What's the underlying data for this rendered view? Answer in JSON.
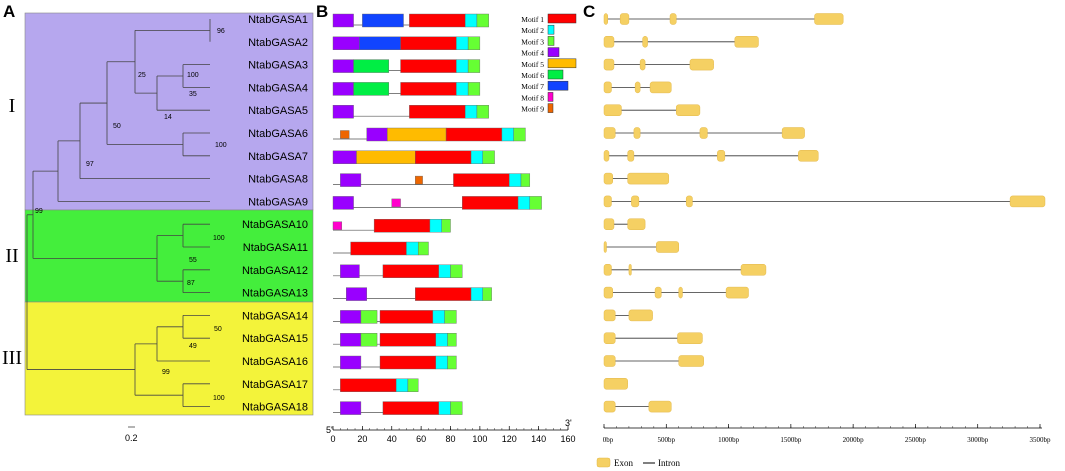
{
  "panels": {
    "a": "A",
    "b": "B",
    "c": "C"
  },
  "clades": [
    {
      "label": "I",
      "color": "#b6a7ee",
      "genes": [
        "NtabGASA1",
        "NtabGASA2",
        "NtabGASA3",
        "NtabGASA4",
        "NtabGASA5",
        "NtabGASA6",
        "NtabGASA7",
        "NtabGASA8",
        "NtabGASA9"
      ]
    },
    {
      "label": "II",
      "color": "#44ee3c",
      "genes": [
        "NtabGASA10",
        "NtabGASA11",
        "NtabGASA12",
        "NtabGASA13"
      ]
    },
    {
      "label": "III",
      "color": "#f3f33a",
      "genes": [
        "NtabGASA14",
        "NtabGASA15",
        "NtabGASA16",
        "NtabGASA17",
        "NtabGASA18"
      ]
    }
  ],
  "genes": [
    "NtabGASA1",
    "NtabGASA2",
    "NtabGASA3",
    "NtabGASA4",
    "NtabGASA5",
    "NtabGASA6",
    "NtabGASA7",
    "NtabGASA8",
    "NtabGASA9",
    "NtabGASA10",
    "NtabGASA11",
    "NtabGASA12",
    "NtabGASA13",
    "NtabGASA14",
    "NtabGASA15",
    "NtabGASA16",
    "NtabGASA17",
    "NtabGASA18"
  ],
  "tree": {
    "bootstrap": [
      "96",
      "25",
      "100",
      "35",
      "14",
      "50",
      "100",
      "97",
      "99",
      "100",
      "55",
      "87",
      "50",
      "49",
      "99",
      "100"
    ],
    "scale_label": "0.2"
  },
  "motifs": {
    "legend": [
      {
        "name": "Motif 1",
        "color": "#ff0000"
      },
      {
        "name": "Motif 2",
        "color": "#00ffff"
      },
      {
        "name": "Motif 3",
        "color": "#66ff33"
      },
      {
        "name": "Motif 4",
        "color": "#9900ff"
      },
      {
        "name": "Motif 5",
        "color": "#ffbb00"
      },
      {
        "name": "Motif 6",
        "color": "#00ee44"
      },
      {
        "name": "Motif 7",
        "color": "#1144ff"
      },
      {
        "name": "Motif 8",
        "color": "#ff00cc"
      },
      {
        "name": "Motif 9",
        "color": "#ee6600"
      }
    ],
    "axis_ticks": [
      "0",
      "20",
      "40",
      "60",
      "80",
      "100",
      "120",
      "140",
      "160"
    ],
    "axis_start": "5'",
    "axis_end": "3'",
    "proteins": [
      {
        "length": 106,
        "motifs": [
          [
            4,
            0,
            14
          ],
          [
            7,
            20,
            48
          ],
          [
            1,
            52,
            90
          ],
          [
            2,
            90,
            98
          ],
          [
            3,
            98,
            106
          ]
        ]
      },
      {
        "length": 100,
        "motifs": [
          [
            4,
            0,
            18
          ],
          [
            7,
            18,
            46
          ],
          [
            1,
            46,
            84
          ],
          [
            2,
            84,
            92
          ],
          [
            3,
            92,
            100
          ]
        ]
      },
      {
        "length": 100,
        "motifs": [
          [
            4,
            0,
            14
          ],
          [
            6,
            14,
            38
          ],
          [
            1,
            46,
            84
          ],
          [
            2,
            84,
            92
          ],
          [
            3,
            92,
            100
          ]
        ]
      },
      {
        "length": 100,
        "motifs": [
          [
            4,
            0,
            14
          ],
          [
            6,
            14,
            38
          ],
          [
            1,
            46,
            84
          ],
          [
            2,
            84,
            92
          ],
          [
            3,
            92,
            100
          ]
        ]
      },
      {
        "length": 106,
        "motifs": [
          [
            4,
            0,
            14
          ],
          [
            1,
            52,
            90
          ],
          [
            2,
            90,
            98
          ],
          [
            3,
            98,
            106
          ]
        ]
      },
      {
        "length": 131,
        "motifs": [
          [
            9,
            5,
            11
          ],
          [
            4,
            23,
            37
          ],
          [
            5,
            37,
            77
          ],
          [
            1,
            77,
            115
          ],
          [
            2,
            115,
            123
          ],
          [
            3,
            123,
            131
          ]
        ]
      },
      {
        "length": 110,
        "motifs": [
          [
            4,
            0,
            16
          ],
          [
            5,
            16,
            56
          ],
          [
            1,
            56,
            94
          ],
          [
            2,
            94,
            102
          ],
          [
            3,
            102,
            110
          ]
        ]
      },
      {
        "length": 134,
        "motifs": [
          [
            4,
            5,
            19
          ],
          [
            9,
            56,
            61
          ],
          [
            1,
            82,
            120
          ],
          [
            2,
            120,
            128
          ],
          [
            3,
            128,
            134
          ]
        ]
      },
      {
        "length": 142,
        "motifs": [
          [
            4,
            0,
            14
          ],
          [
            8,
            40,
            46
          ],
          [
            1,
            88,
            126
          ],
          [
            2,
            126,
            134
          ],
          [
            3,
            134,
            142
          ]
        ]
      },
      {
        "length": 80,
        "motifs": [
          [
            8,
            0,
            6
          ],
          [
            1,
            28,
            66
          ],
          [
            2,
            66,
            74
          ],
          [
            3,
            74,
            80
          ]
        ]
      },
      {
        "length": 65,
        "motifs": [
          [
            1,
            12,
            50
          ],
          [
            2,
            50,
            58
          ],
          [
            3,
            58,
            65
          ]
        ]
      },
      {
        "length": 88,
        "motifs": [
          [
            4,
            5,
            18
          ],
          [
            1,
            34,
            72
          ],
          [
            2,
            72,
            80
          ],
          [
            3,
            80,
            88
          ]
        ]
      },
      {
        "length": 108,
        "motifs": [
          [
            4,
            9,
            23
          ],
          [
            1,
            56,
            94
          ],
          [
            2,
            94,
            102
          ],
          [
            3,
            102,
            108
          ]
        ]
      },
      {
        "length": 84,
        "motifs": [
          [
            4,
            5,
            19
          ],
          [
            3,
            19,
            30
          ],
          [
            1,
            32,
            68
          ],
          [
            2,
            68,
            76
          ],
          [
            3,
            76,
            84
          ]
        ]
      },
      {
        "length": 84,
        "motifs": [
          [
            4,
            5,
            19
          ],
          [
            3,
            19,
            30
          ],
          [
            1,
            32,
            70
          ],
          [
            2,
            70,
            78
          ],
          [
            3,
            78,
            84
          ]
        ]
      },
      {
        "length": 84,
        "motifs": [
          [
            4,
            5,
            19
          ],
          [
            1,
            32,
            70
          ],
          [
            2,
            70,
            78
          ],
          [
            3,
            78,
            84
          ]
        ]
      },
      {
        "length": 58,
        "motifs": [
          [
            1,
            5,
            43
          ],
          [
            2,
            43,
            51
          ],
          [
            3,
            51,
            58
          ]
        ]
      },
      {
        "length": 88,
        "motifs": [
          [
            4,
            5,
            19
          ],
          [
            1,
            34,
            72
          ],
          [
            2,
            72,
            80
          ],
          [
            3,
            80,
            88
          ]
        ]
      }
    ]
  },
  "gene_structure": {
    "axis_ticks": [
      "0bp",
      "500bp",
      "1000bp",
      "1500bp",
      "2000bp",
      "2500bp",
      "3000bp",
      "3500bp"
    ],
    "legend": {
      "exon": "Exon",
      "intron": "Intron"
    },
    "exon_color": "#f5d063",
    "genes": [
      {
        "length": 1920,
        "exons": [
          [
            0,
            30
          ],
          [
            130,
            200
          ],
          [
            530,
            580
          ],
          [
            1690,
            1920
          ]
        ]
      },
      {
        "length": 1240,
        "exons": [
          [
            0,
            80
          ],
          [
            310,
            350
          ],
          [
            1050,
            1240
          ]
        ]
      },
      {
        "length": 880,
        "exons": [
          [
            0,
            80
          ],
          [
            290,
            330
          ],
          [
            690,
            880
          ]
        ]
      },
      {
        "length": 540,
        "exons": [
          [
            0,
            60
          ],
          [
            250,
            290
          ],
          [
            370,
            540
          ]
        ]
      },
      {
        "length": 770,
        "exons": [
          [
            0,
            140
          ],
          [
            580,
            770
          ]
        ]
      },
      {
        "length": 1610,
        "exons": [
          [
            0,
            90
          ],
          [
            240,
            290
          ],
          [
            770,
            830
          ],
          [
            1430,
            1610
          ]
        ]
      },
      {
        "length": 1720,
        "exons": [
          [
            0,
            40
          ],
          [
            190,
            240
          ],
          [
            910,
            970
          ],
          [
            1560,
            1720
          ]
        ]
      },
      {
        "length": 520,
        "exons": [
          [
            0,
            70
          ],
          [
            190,
            520
          ]
        ]
      },
      {
        "length": 3540,
        "exons": [
          [
            0,
            60
          ],
          [
            220,
            280
          ],
          [
            660,
            710
          ],
          [
            3260,
            3540
          ]
        ]
      },
      {
        "length": 330,
        "exons": [
          [
            0,
            80
          ],
          [
            190,
            330
          ]
        ]
      },
      {
        "length": 600,
        "exons": [
          [
            0,
            15
          ],
          [
            420,
            600
          ]
        ]
      },
      {
        "length": 1300,
        "exons": [
          [
            0,
            60
          ],
          [
            200,
            220
          ],
          [
            1100,
            1300
          ]
        ]
      },
      {
        "length": 1160,
        "exons": [
          [
            0,
            70
          ],
          [
            410,
            460
          ],
          [
            600,
            630
          ],
          [
            980,
            1160
          ]
        ]
      },
      {
        "length": 390,
        "exons": [
          [
            0,
            90
          ],
          [
            200,
            390
          ]
        ]
      },
      {
        "length": 790,
        "exons": [
          [
            0,
            90
          ],
          [
            590,
            790
          ]
        ]
      },
      {
        "length": 800,
        "exons": [
          [
            0,
            90
          ],
          [
            600,
            800
          ]
        ]
      },
      {
        "length": 190,
        "exons": [
          [
            0,
            190
          ]
        ]
      },
      {
        "length": 540,
        "exons": [
          [
            0,
            90
          ],
          [
            360,
            540
          ]
        ]
      }
    ]
  }
}
